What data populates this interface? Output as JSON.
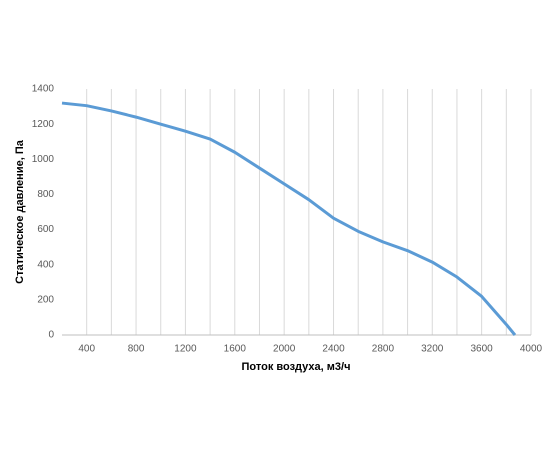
{
  "chart_data": {
    "type": "line",
    "x_label": "Поток воздуха, м3/ч",
    "y_label": "Статическое давление, Па",
    "x": [
      200,
      400,
      600,
      800,
      1000,
      1200,
      1400,
      1600,
      1800,
      2000,
      2200,
      2400,
      2600,
      2800,
      3000,
      3200,
      3400,
      3600,
      3800,
      3870
    ],
    "series": [
      {
        "color": "#5b9bd5",
        "values": [
          1320,
          1305,
          1275,
          1240,
          1200,
          1160,
          1115,
          1040,
          950,
          860,
          770,
          665,
          590,
          530,
          480,
          415,
          330,
          220,
          60,
          0
        ]
      }
    ],
    "xlim": [
      200,
      4000
    ],
    "xticks": [
      400,
      800,
      1200,
      1600,
      2000,
      2400,
      2800,
      3200,
      3600,
      4000
    ],
    "xgrid": [
      400,
      600,
      800,
      1000,
      1200,
      1400,
      1600,
      1800,
      2000,
      2200,
      2400,
      2600,
      2800,
      3000,
      3200,
      3400,
      3600,
      3800,
      4000
    ],
    "ylim": [
      0,
      1400
    ],
    "yticks": [
      0,
      200,
      400,
      600,
      800,
      1000,
      1200,
      1400
    ],
    "grid": true
  }
}
